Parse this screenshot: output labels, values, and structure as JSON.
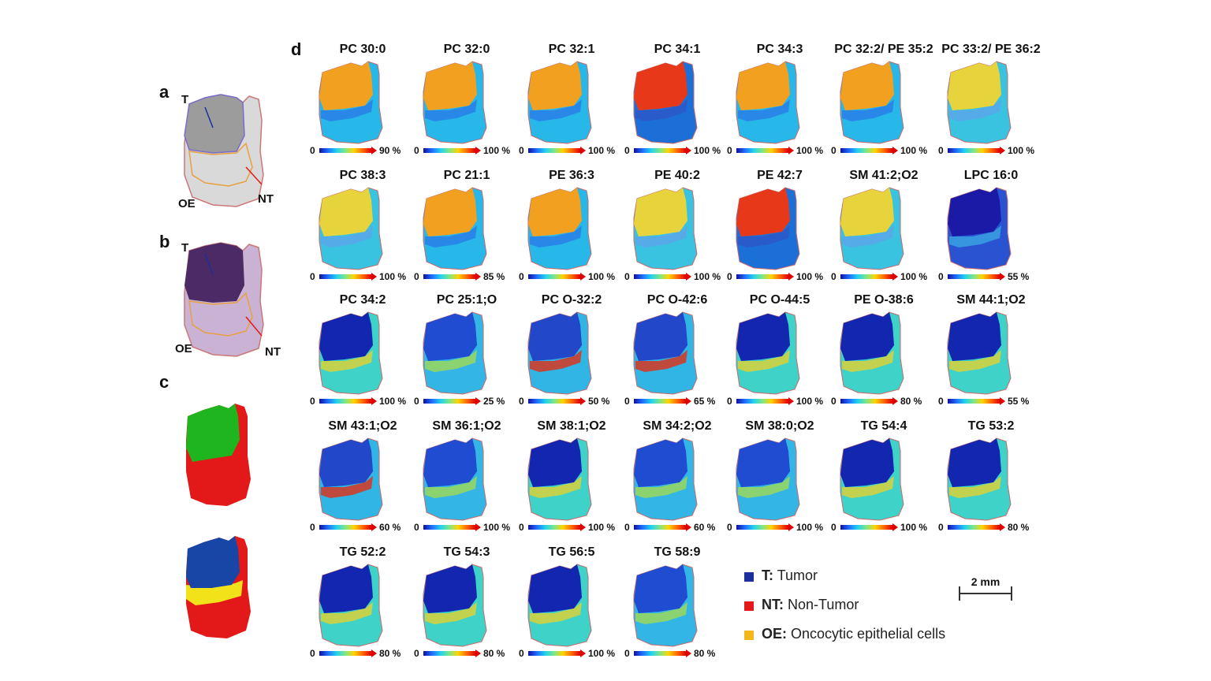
{
  "panels": {
    "a": "a",
    "b": "b",
    "c": "c",
    "d": "d"
  },
  "annotations": {
    "tumor": "T",
    "non_tumor": "NT",
    "oncocytic": "OE"
  },
  "region_colors": {
    "tumor": "#1746a6",
    "non_tumor": "#e31818",
    "oncocytic": "#f2e21a",
    "tumor_c_top": "#1eb51e"
  },
  "ion_images": [
    {
      "label": "PC 30:0",
      "min": "0",
      "max": "90 %",
      "pattern": "tumor-high"
    },
    {
      "label": "PC 32:0",
      "min": "0",
      "max": "100 %",
      "pattern": "tumor-high"
    },
    {
      "label": "PC 32:1",
      "min": "0",
      "max": "100 %",
      "pattern": "tumor-high"
    },
    {
      "label": "PC 34:1",
      "min": "0",
      "max": "100 %",
      "pattern": "tumor-very-high"
    },
    {
      "label": "PC 34:3",
      "min": "0",
      "max": "100 %",
      "pattern": "tumor-high"
    },
    {
      "label": "PC 32:2/ PE 35:2",
      "min": "0",
      "max": "100 %",
      "pattern": "tumor-high"
    },
    {
      "label": "PC 33:2/ PE 36:2",
      "min": "0",
      "max": "100 %",
      "pattern": "tumor-mid"
    },
    {
      "label": "PC 38:3",
      "min": "0",
      "max": "100 %",
      "pattern": "tumor-mid"
    },
    {
      "label": "PC 21:1",
      "min": "0",
      "max": "85 %",
      "pattern": "tumor-high"
    },
    {
      "label": "PE 36:3",
      "min": "0",
      "max": "100 %",
      "pattern": "tumor-high"
    },
    {
      "label": "PE 40:2",
      "min": "0",
      "max": "100 %",
      "pattern": "tumor-mid"
    },
    {
      "label": "PE 42:7",
      "min": "0",
      "max": "100 %",
      "pattern": "tumor-very-high"
    },
    {
      "label": "SM 41:2;O2",
      "min": "0",
      "max": "100 %",
      "pattern": "tumor-mid"
    },
    {
      "label": "LPC 16:0",
      "min": "0",
      "max": "55 %",
      "pattern": "nontumor-low"
    },
    {
      "label": "PC 34:2",
      "min": "0",
      "max": "100 %",
      "pattern": "nontumor-high"
    },
    {
      "label": "PC 25:1;O",
      "min": "0",
      "max": "25 %",
      "pattern": "nontumor-mid"
    },
    {
      "label": "PC O-32:2",
      "min": "0",
      "max": "50 %",
      "pattern": "oe-high"
    },
    {
      "label": "PC O-42:6",
      "min": "0",
      "max": "65 %",
      "pattern": "oe-high"
    },
    {
      "label": "PC O-44:5",
      "min": "0",
      "max": "100 %",
      "pattern": "nontumor-high"
    },
    {
      "label": "PE O-38:6",
      "min": "0",
      "max": "80 %",
      "pattern": "nontumor-high"
    },
    {
      "label": "SM 44:1;O2",
      "min": "0",
      "max": "55 %",
      "pattern": "nontumor-high"
    },
    {
      "label": "SM 43:1;O2",
      "min": "0",
      "max": "60 %",
      "pattern": "oe-high"
    },
    {
      "label": "SM 36:1;O2",
      "min": "0",
      "max": "100 %",
      "pattern": "nontumor-mid"
    },
    {
      "label": "SM 38:1;O2",
      "min": "0",
      "max": "100 %",
      "pattern": "nontumor-high"
    },
    {
      "label": "SM 34:2;O2",
      "min": "0",
      "max": "60 %",
      "pattern": "nontumor-mid"
    },
    {
      "label": "SM 38:0;O2",
      "min": "0",
      "max": "100 %",
      "pattern": "nontumor-mid"
    },
    {
      "label": "TG 54:4",
      "min": "0",
      "max": "100 %",
      "pattern": "nontumor-high"
    },
    {
      "label": "TG 53:2",
      "min": "0",
      "max": "80 %",
      "pattern": "nontumor-high"
    },
    {
      "label": "TG 52:2",
      "min": "0",
      "max": "80 %",
      "pattern": "nontumor-high"
    },
    {
      "label": "TG 54:3",
      "min": "0",
      "max": "80 %",
      "pattern": "nontumor-high"
    },
    {
      "label": "TG 56:5",
      "min": "0",
      "max": "100 %",
      "pattern": "nontumor-high"
    },
    {
      "label": "TG 58:9",
      "min": "0",
      "max": "80 %",
      "pattern": "nontumor-mid"
    }
  ],
  "legend": [
    {
      "abbr": "T:",
      "text": "Tumor",
      "color": "#1c2f9a"
    },
    {
      "abbr": "NT:",
      "text": "Non-Tumor",
      "color": "#e31818"
    },
    {
      "abbr": "OE:",
      "text": "Oncocytic epithelial cells",
      "color": "#f2b81a"
    }
  ],
  "scale_bar": "2 mm"
}
